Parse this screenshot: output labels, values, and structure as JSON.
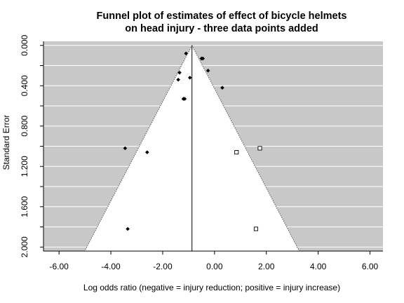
{
  "chart_data": {
    "type": "scatter",
    "title_lines": [
      "Funnel plot of estimates of effect of bicycle helmets",
      "on head injury - three data points added"
    ],
    "xlabel": "Log odds ratio (negative = injury reduction; positive = injury increase)",
    "ylabel": "Standard Error",
    "xlim": [
      -6.6,
      6.5
    ],
    "ylim": [
      2.04,
      -0.04
    ],
    "y_reversed": true,
    "x_ticks": [
      "-6.00",
      "-4.00",
      "-2.00",
      "0.00",
      "2.00",
      "4.00",
      "6.00"
    ],
    "y_ticks": [
      "0.000",
      "0.400",
      "0.800",
      "1.200",
      "1.600",
      "2.000"
    ],
    "grid": "horizontal every 0.2",
    "pooled_estimate": -0.87,
    "funnel": {
      "apex": [
        -0.87,
        0.0
      ],
      "left_at_se_2": -4.93,
      "right_at_se_2": 3.19
    },
    "colors": {
      "shaded_region": "#c8c8c8",
      "funnel_interior": "#ffffff",
      "gridline": "#ffffff",
      "points": "#000000"
    },
    "series": [
      {
        "marker": "filled-diamond",
        "points": [
          [
            -1.1,
            0.08
          ],
          [
            -0.5,
            0.13
          ],
          [
            -0.45,
            0.13
          ],
          [
            -1.35,
            0.27
          ],
          [
            -0.25,
            0.25
          ],
          [
            -1.4,
            0.34
          ],
          [
            -0.95,
            0.32
          ],
          [
            0.3,
            0.42
          ],
          [
            -1.15,
            0.53
          ],
          [
            -1.2,
            0.53
          ],
          [
            -3.45,
            1.02
          ],
          [
            -2.6,
            1.06
          ],
          [
            -3.35,
            1.82
          ]
        ]
      },
      {
        "marker": "open-square",
        "points": [
          [
            0.85,
            1.06
          ],
          [
            1.75,
            1.02
          ],
          [
            1.6,
            1.82
          ]
        ]
      }
    ]
  }
}
